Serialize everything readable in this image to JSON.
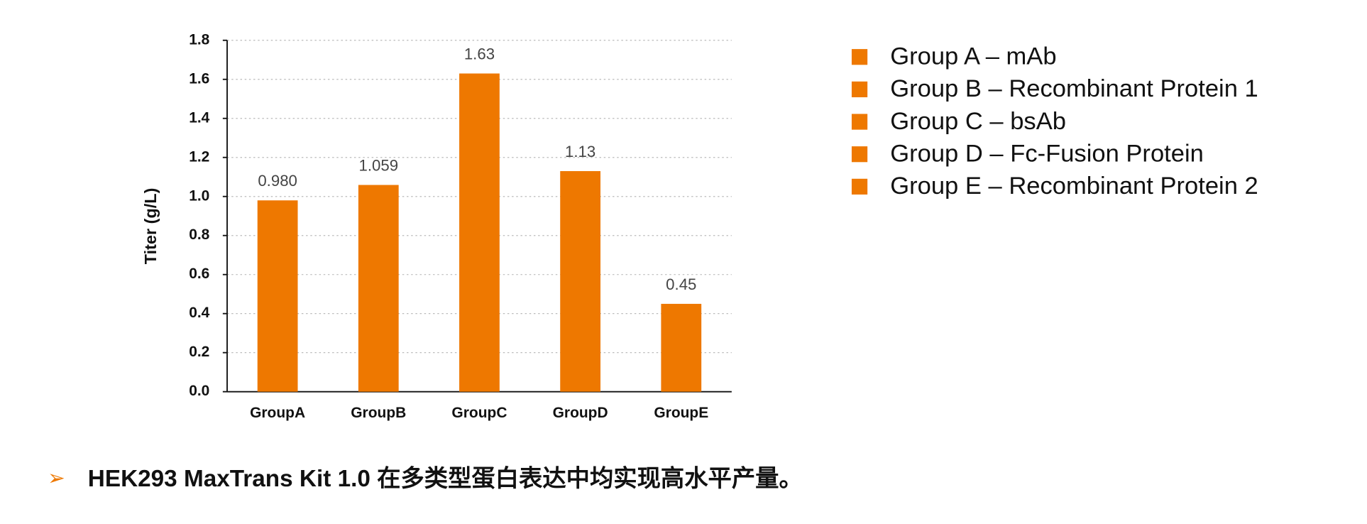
{
  "chart_data": {
    "type": "bar",
    "ylabel": "Titer (g/L)",
    "categories": [
      "GroupA",
      "GroupB",
      "GroupC",
      "GroupD",
      "GroupE"
    ],
    "values": [
      0.98,
      1.059,
      1.63,
      1.13,
      0.45
    ],
    "value_labels": [
      "0.980",
      "1.059",
      "1.63",
      "1.13",
      "0.45"
    ],
    "color": "#ee7800",
    "ylim": [
      0,
      1.8
    ],
    "yticks": [
      {
        "value": 0,
        "label": "0.0"
      },
      0.2,
      0.4,
      0.6,
      0.8,
      {
        "value": 1,
        "label": "1.0"
      },
      1.2,
      1.4,
      1.6,
      1.8
    ],
    "grid": true,
    "legend": [
      "Group A – mAb",
      "Group B – Recombinant Protein 1",
      "Group C – bsAb",
      "Group D – Fc-Fusion Protein",
      "Group E – Recombinant Protein 2"
    ],
    "caption": "HEK293 MaxTrans Kit 1.0 在多类型蛋白表达中均实现高水平产量。"
  }
}
